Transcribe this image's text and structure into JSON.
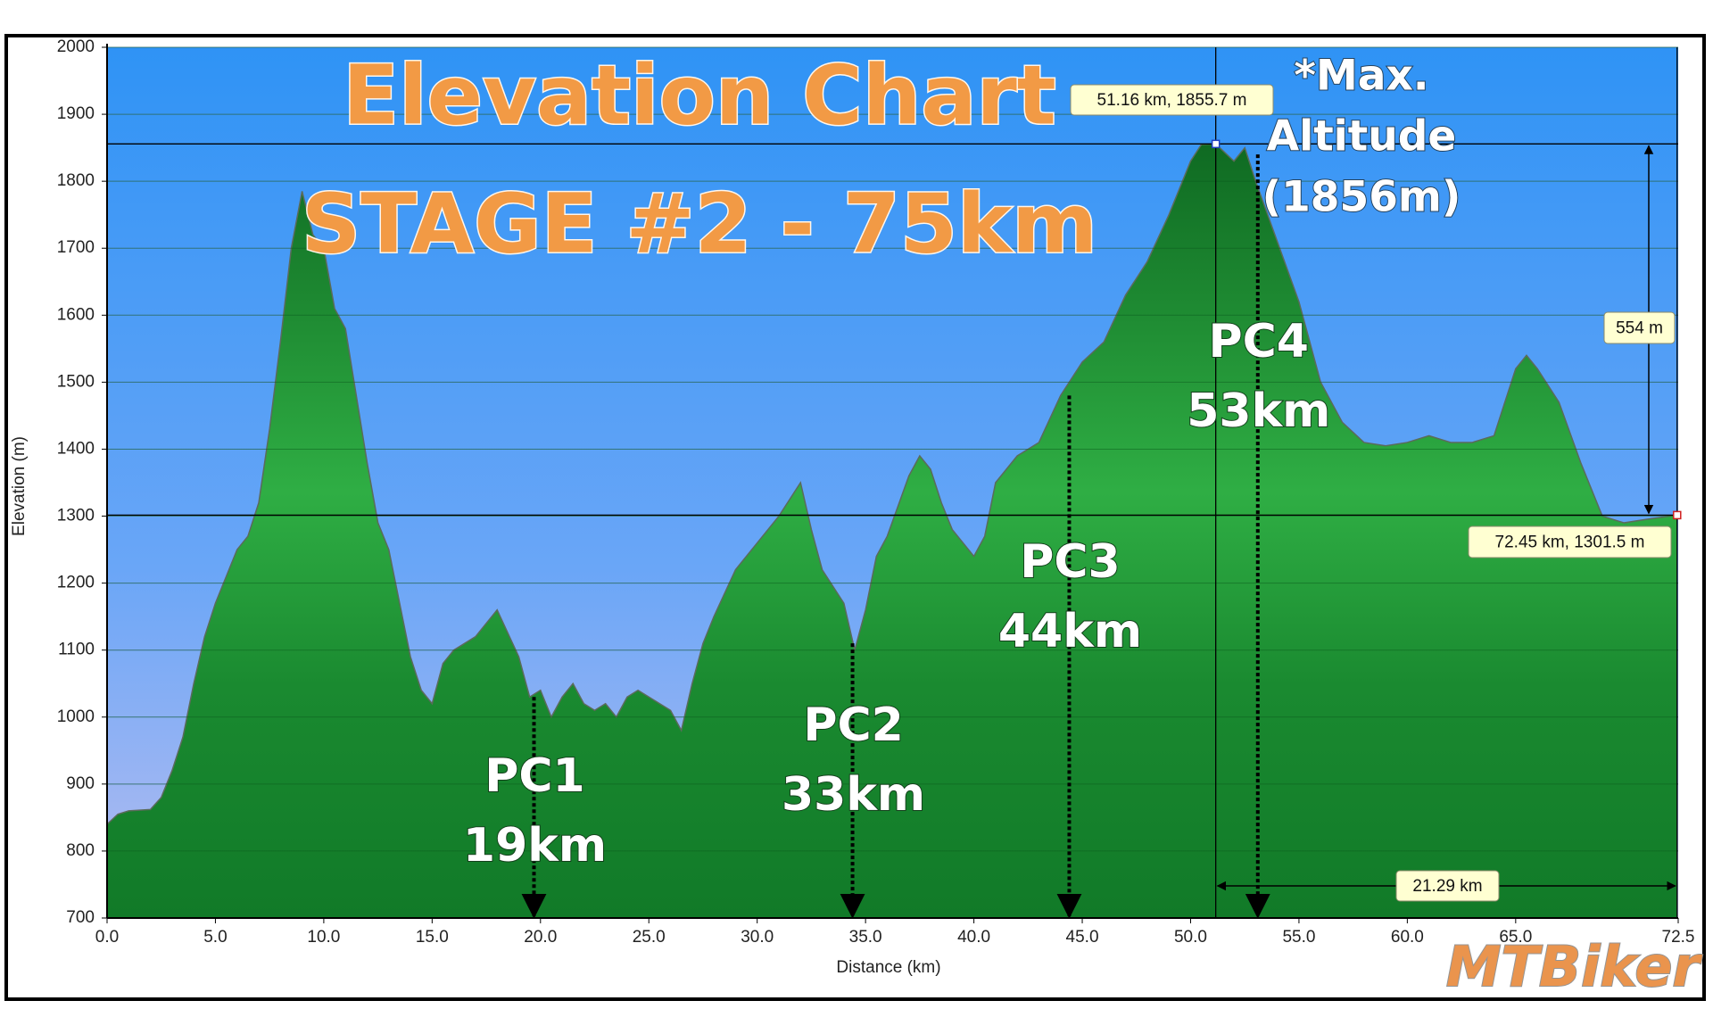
{
  "chart_data": {
    "type": "area",
    "title": [
      "Elevation Chart",
      "STAGE #2 - 75km"
    ],
    "note": [
      "*Max.",
      "Altitude",
      "(1856m)"
    ],
    "x_label": "Distance  (km)",
    "y_label": "Elevation (m)",
    "x": [
      0,
      0.5,
      1,
      2,
      2.5,
      3,
      3.5,
      4,
      4.5,
      5,
      5.5,
      6,
      6.5,
      7,
      7.5,
      8,
      8.5,
      9,
      9.5,
      10,
      10.5,
      11,
      11.5,
      12,
      12.5,
      13,
      13.5,
      14,
      14.5,
      15,
      15.5,
      16,
      17,
      18,
      19,
      19.5,
      20,
      20.5,
      21,
      21.5,
      22,
      22.5,
      23,
      23.5,
      24,
      24.5,
      25,
      26,
      26.5,
      27,
      27.5,
      28,
      29,
      30,
      31,
      32,
      32.5,
      33,
      34,
      34.5,
      35,
      35.5,
      36,
      37,
      37.5,
      38,
      38.5,
      39,
      39.5,
      40,
      40.5,
      41,
      42,
      43,
      44,
      45,
      46,
      47,
      48,
      49,
      50,
      50.5,
      51.16,
      52,
      52.5,
      53,
      54,
      55,
      56,
      57,
      58,
      59,
      60,
      61,
      62,
      63,
      64,
      65,
      65.5,
      66,
      67,
      68,
      69,
      70,
      71,
      72.45
    ],
    "values": [
      840,
      855,
      860,
      862,
      880,
      920,
      970,
      1050,
      1120,
      1170,
      1210,
      1250,
      1270,
      1320,
      1430,
      1560,
      1700,
      1785,
      1720,
      1700,
      1610,
      1580,
      1480,
      1380,
      1290,
      1250,
      1170,
      1090,
      1040,
      1020,
      1080,
      1100,
      1120,
      1160,
      1090,
      1030,
      1040,
      1000,
      1030,
      1050,
      1020,
      1010,
      1020,
      1000,
      1030,
      1040,
      1030,
      1010,
      980,
      1050,
      1110,
      1150,
      1220,
      1260,
      1300,
      1350,
      1280,
      1220,
      1170,
      1100,
      1160,
      1240,
      1270,
      1360,
      1390,
      1370,
      1320,
      1280,
      1260,
      1240,
      1270,
      1350,
      1390,
      1410,
      1480,
      1530,
      1560,
      1630,
      1680,
      1750,
      1830,
      1855,
      1855.7,
      1830,
      1850,
      1800,
      1710,
      1620,
      1500,
      1440,
      1410,
      1405,
      1410,
      1420,
      1410,
      1410,
      1420,
      1520,
      1540,
      1520,
      1470,
      1380,
      1300,
      1290,
      1295,
      1301.5
    ],
    "color": "#1f9a38",
    "xlim": [
      0,
      72.5
    ],
    "ylim": [
      700,
      2000
    ],
    "xticks": [
      {
        "value": 0,
        "label": "0.0"
      },
      {
        "value": 5,
        "label": "5.0"
      },
      {
        "value": 10,
        "label": "10.0"
      },
      {
        "value": 15,
        "label": "15.0"
      },
      {
        "value": 20,
        "label": "20.0"
      },
      {
        "value": 25,
        "label": "25.0"
      },
      {
        "value": 30,
        "label": "30.0"
      },
      {
        "value": 35,
        "label": "35.0"
      },
      {
        "value": 40,
        "label": "40.0"
      },
      {
        "value": 45,
        "label": "45.0"
      },
      {
        "value": 50,
        "label": "50.0"
      },
      {
        "value": 55,
        "label": "55.0"
      },
      {
        "value": 60,
        "label": "60.0"
      },
      {
        "value": 65,
        "label": "65.0"
      },
      {
        "value": 72.5,
        "label": "72.5"
      }
    ],
    "yticks": [
      700,
      800,
      900,
      1000,
      1100,
      1200,
      1300,
      1400,
      1500,
      1600,
      1700,
      1800,
      1900,
      2000
    ],
    "grid": true,
    "checkpoints": [
      {
        "name": "PC1",
        "distance": "19km",
        "x": 19.7,
        "top": 1030
      },
      {
        "name": "PC2",
        "distance": "33km",
        "x": 34.4,
        "top": 1110
      },
      {
        "name": "PC3",
        "distance": "44km",
        "x": 44.4,
        "top": 1480
      },
      {
        "name": "PC4",
        "distance": "53km",
        "x": 53.1,
        "top": 1840
      }
    ],
    "markers": [
      {
        "x": 51.16,
        "y": 1855.7,
        "label": "51.16 km, 1855.7 m"
      },
      {
        "x": 72.45,
        "y": 1301.5,
        "label": "72.45 km, 1301.5 m"
      }
    ],
    "rise_label": "554 m",
    "span_label": "21.29 km",
    "logo": "MTBiker"
  }
}
